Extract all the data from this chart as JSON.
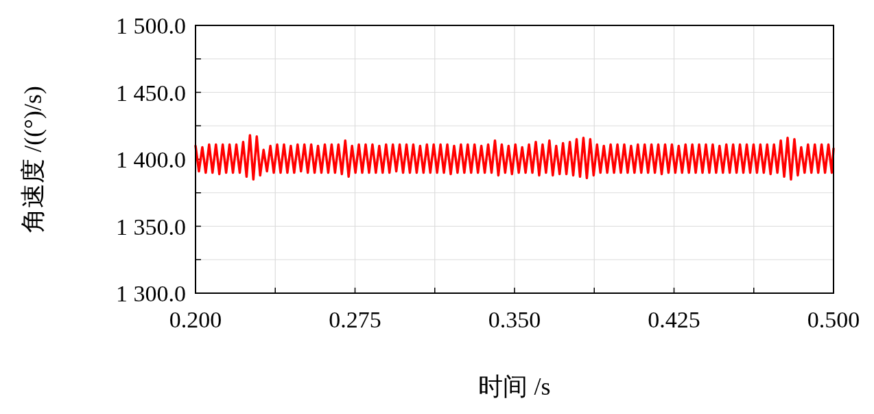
{
  "chart_data": {
    "type": "line",
    "xlabel": "时间 /s",
    "ylabel": "角速度 /((°)/s)",
    "xlim": [
      0.2,
      0.5
    ],
    "ylim": [
      1300,
      1500
    ],
    "xticks": [
      {
        "value": 0.2,
        "label": "0.200"
      },
      {
        "value": 0.2375,
        "label": null
      },
      {
        "value": 0.275,
        "label": "0.275"
      },
      {
        "value": 0.3125,
        "label": null
      },
      {
        "value": 0.35,
        "label": "0.350"
      },
      {
        "value": 0.3875,
        "label": null
      },
      {
        "value": 0.425,
        "label": "0.425"
      },
      {
        "value": 0.4625,
        "label": null
      },
      {
        "value": 0.5,
        "label": "0.500"
      }
    ],
    "yticks": [
      {
        "value": 1300,
        "label": "1 300.0"
      },
      {
        "value": 1325,
        "label": null
      },
      {
        "value": 1350,
        "label": "1 350.0"
      },
      {
        "value": 1375,
        "label": null
      },
      {
        "value": 1400,
        "label": "1 400.0"
      },
      {
        "value": 1425,
        "label": null
      },
      {
        "value": 1450,
        "label": "1 450.0"
      },
      {
        "value": 1475,
        "label": null
      },
      {
        "value": 1500,
        "label": "1 500.0"
      }
    ],
    "grid": true,
    "marker": "none",
    "line_style": "solid",
    "series": [
      {
        "color": "#ff0000",
        "x": [
          0.2,
          0.2016,
          0.2032,
          0.2048,
          0.2064,
          0.208,
          0.2096,
          0.2112,
          0.2128,
          0.2144,
          0.216,
          0.2176,
          0.2192,
          0.2208,
          0.2224,
          0.224,
          0.2256,
          0.2272,
          0.2288,
          0.2304,
          0.232,
          0.2336,
          0.2352,
          0.2368,
          0.2384,
          0.24,
          0.2416,
          0.2432,
          0.2448,
          0.2464,
          0.248,
          0.2496,
          0.2512,
          0.2528,
          0.2544,
          0.256,
          0.2576,
          0.2592,
          0.2608,
          0.2624,
          0.264,
          0.2656,
          0.2672,
          0.2688,
          0.2704,
          0.272,
          0.2736,
          0.2752,
          0.2768,
          0.2784,
          0.28,
          0.2816,
          0.2832,
          0.2848,
          0.2864,
          0.288,
          0.2896,
          0.2912,
          0.2928,
          0.2944,
          0.296,
          0.2976,
          0.2992,
          0.3008,
          0.3024,
          0.304,
          0.3056,
          0.3072,
          0.3088,
          0.3104,
          0.312,
          0.3136,
          0.3152,
          0.3168,
          0.3184,
          0.32,
          0.3216,
          0.3232,
          0.3248,
          0.3264,
          0.328,
          0.3296,
          0.3312,
          0.3328,
          0.3344,
          0.336,
          0.3376,
          0.3392,
          0.3408,
          0.3424,
          0.344,
          0.3456,
          0.3472,
          0.3488,
          0.3504,
          0.352,
          0.3536,
          0.3552,
          0.3568,
          0.3584,
          0.36,
          0.3616,
          0.3632,
          0.3648,
          0.3664,
          0.368,
          0.3696,
          0.3712,
          0.3728,
          0.3744,
          0.376,
          0.3776,
          0.3792,
          0.3808,
          0.3824,
          0.384,
          0.3856,
          0.3872,
          0.3888,
          0.3904,
          0.392,
          0.3936,
          0.3952,
          0.3968,
          0.3984,
          0.4,
          0.4016,
          0.4032,
          0.4048,
          0.4064,
          0.408,
          0.4096,
          0.4112,
          0.4128,
          0.4144,
          0.416,
          0.4176,
          0.4192,
          0.4208,
          0.4224,
          0.424,
          0.4256,
          0.4272,
          0.4288,
          0.4304,
          0.432,
          0.4336,
          0.4352,
          0.4368,
          0.4384,
          0.44,
          0.4416,
          0.4432,
          0.4448,
          0.4464,
          0.448,
          0.4496,
          0.4512,
          0.4528,
          0.4544,
          0.456,
          0.4576,
          0.4592,
          0.4608,
          0.4624,
          0.464,
          0.4656,
          0.4672,
          0.4688,
          0.4704,
          0.472,
          0.4736,
          0.4752,
          0.4768,
          0.4784,
          0.48,
          0.4816,
          0.4832,
          0.4848,
          0.4864,
          0.488,
          0.4896,
          0.4912,
          0.4928,
          0.4944,
          0.496,
          0.4976,
          0.4992,
          0.5
        ],
        "values": [
          1410,
          1391,
          1409,
          1390,
          1411,
          1390,
          1411,
          1389,
          1411,
          1390,
          1411,
          1390,
          1411,
          1390,
          1413,
          1387,
          1418,
          1385,
          1417,
          1388,
          1407,
          1391,
          1410,
          1390,
          1411,
          1390,
          1411,
          1390,
          1410,
          1390,
          1411,
          1391,
          1411,
          1390,
          1411,
          1390,
          1410,
          1390,
          1411,
          1390,
          1411,
          1390,
          1411,
          1389,
          1414,
          1387,
          1410,
          1390,
          1411,
          1390,
          1411,
          1390,
          1411,
          1390,
          1410,
          1390,
          1411,
          1390,
          1411,
          1391,
          1411,
          1390,
          1411,
          1390,
          1411,
          1390,
          1410,
          1390,
          1411,
          1390,
          1411,
          1390,
          1411,
          1390,
          1411,
          1389,
          1410,
          1390,
          1411,
          1390,
          1411,
          1390,
          1411,
          1390,
          1410,
          1390,
          1411,
          1390,
          1414,
          1388,
          1411,
          1390,
          1410,
          1389,
          1411,
          1390,
          1409,
          1390,
          1411,
          1390,
          1413,
          1388,
          1411,
          1390,
          1414,
          1388,
          1410,
          1389,
          1412,
          1389,
          1413,
          1388,
          1415,
          1387,
          1416,
          1386,
          1415,
          1388,
          1411,
          1390,
          1410,
          1390,
          1411,
          1390,
          1411,
          1390,
          1411,
          1390,
          1410,
          1390,
          1411,
          1390,
          1411,
          1390,
          1411,
          1390,
          1411,
          1389,
          1411,
          1390,
          1411,
          1390,
          1410,
          1390,
          1411,
          1390,
          1411,
          1390,
          1411,
          1390,
          1411,
          1390,
          1411,
          1390,
          1410,
          1390,
          1411,
          1390,
          1411,
          1390,
          1411,
          1390,
          1411,
          1390,
          1411,
          1390,
          1411,
          1390,
          1411,
          1389,
          1411,
          1390,
          1414,
          1387,
          1416,
          1385,
          1415,
          1388,
          1409,
          1390,
          1411,
          1390,
          1411,
          1390,
          1411,
          1390,
          1411,
          1390,
          1408
        ]
      }
    ]
  }
}
